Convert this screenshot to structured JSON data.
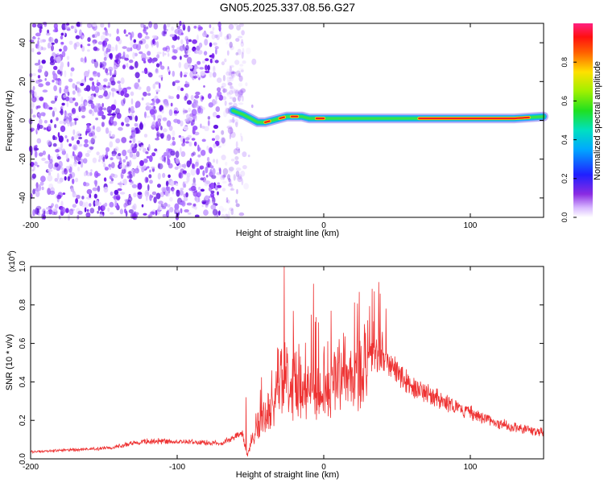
{
  "title": "GN05.2025.337.08.56.G27",
  "chart_data": [
    {
      "type": "heatmap",
      "xlabel": "Height of straight line (km)",
      "ylabel": "Frequency (Hz)",
      "xlim": [
        -200,
        150
      ],
      "ylim": [
        -50,
        50
      ],
      "x_ticks": [
        "-200",
        "-100",
        "0",
        "100"
      ],
      "y_ticks": [
        "-40",
        "-20",
        "0",
        "20",
        "40"
      ],
      "colorbar": {
        "label": "Normalized spectral amplitude",
        "range": [
          0,
          1
        ],
        "ticks": [
          "0.0",
          "0.2",
          "0.4",
          "0.6",
          "0.8"
        ]
      },
      "noise_region_x": [
        -200,
        -55
      ],
      "signal_track": [
        {
          "x": -62,
          "y": 5
        },
        {
          "x": -55,
          "y": 3
        },
        {
          "x": -50,
          "y": 1
        },
        {
          "x": -45,
          "y": -1
        },
        {
          "x": -40,
          "y": -1
        },
        {
          "x": -35,
          "y": 0
        },
        {
          "x": -30,
          "y": 1
        },
        {
          "x": -25,
          "y": 2
        },
        {
          "x": -20,
          "y": 2
        },
        {
          "x": -15,
          "y": 2
        },
        {
          "x": -10,
          "y": 1
        },
        {
          "x": 0,
          "y": 1
        },
        {
          "x": 20,
          "y": 1
        },
        {
          "x": 50,
          "y": 1
        },
        {
          "x": 70,
          "y": 1
        },
        {
          "x": 100,
          "y": 1
        },
        {
          "x": 130,
          "y": 1
        },
        {
          "x": 150,
          "y": 2
        }
      ],
      "peak_segments_x": [
        [
          -40,
          -37
        ],
        [
          -30,
          -27
        ],
        [
          -22,
          -18
        ],
        [
          -5,
          0
        ],
        [
          65,
          140
        ]
      ]
    },
    {
      "type": "line",
      "xlabel": "Height of straight line (km)",
      "ylabel": "SNR (10 * v/v)",
      "y_scale_label": "(x10",
      "y_scale_exp": "4",
      "y_scale_close": ")",
      "xlim": [
        -200,
        150
      ],
      "ylim": [
        0,
        1.0
      ],
      "x_ticks": [
        "-200",
        "-100",
        "0",
        "100"
      ],
      "y_ticks": [
        "0.0",
        "0.2",
        "0.4",
        "0.6",
        "0.8",
        "1.0"
      ],
      "series": [
        {
          "color": "#ee3333",
          "envelope": [
            {
              "x": -200,
              "y": 0.04
            },
            {
              "x": -150,
              "y": 0.06
            },
            {
              "x": -120,
              "y": 0.1
            },
            {
              "x": -100,
              "y": 0.1
            },
            {
              "x": -70,
              "y": 0.09
            },
            {
              "x": -55,
              "y": 0.15
            },
            {
              "x": -52,
              "y": 0.02
            },
            {
              "x": -45,
              "y": 0.25
            },
            {
              "x": -35,
              "y": 0.35
            },
            {
              "x": -28,
              "y": 0.55
            },
            {
              "x": -15,
              "y": 0.45
            },
            {
              "x": 0,
              "y": 0.5
            },
            {
              "x": 20,
              "y": 0.58
            },
            {
              "x": 35,
              "y": 0.6
            },
            {
              "x": 42,
              "y": 0.58
            },
            {
              "x": 60,
              "y": 0.42
            },
            {
              "x": 90,
              "y": 0.3
            },
            {
              "x": 120,
              "y": 0.2
            },
            {
              "x": 150,
              "y": 0.15
            }
          ],
          "spikes": [
            {
              "x": -53,
              "y": 0.32
            },
            {
              "x": -27,
              "y": 1.0
            },
            {
              "x": -7,
              "y": 0.91
            },
            {
              "x": 5,
              "y": 0.77
            },
            {
              "x": 30,
              "y": 0.72
            },
            {
              "x": 40,
              "y": 0.66
            }
          ]
        }
      ]
    }
  ]
}
